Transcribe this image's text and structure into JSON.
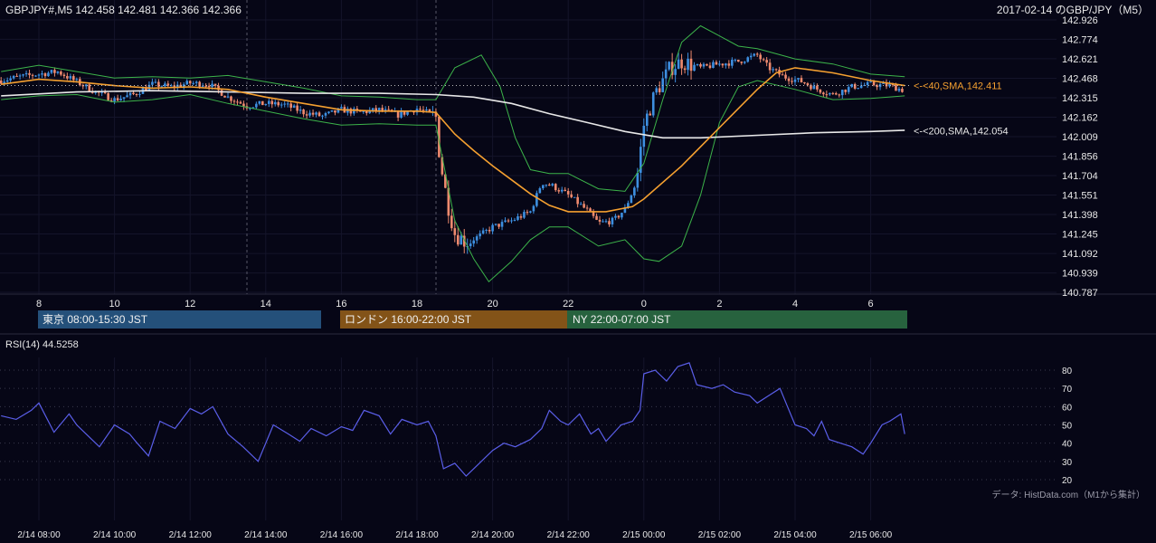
{
  "header": {
    "symbol_info": "GBPJPY#,M5 142.458 142.481 142.366 142.366",
    "chart_title": "2017-02-14 のGBP/JPY（M5）"
  },
  "price_chart": {
    "y_ticks": [
      "142.926",
      "142.774",
      "142.621",
      "142.468",
      "142.315",
      "142.162",
      "142.009",
      "141.856",
      "141.704",
      "141.551",
      "141.398",
      "141.245",
      "141.092",
      "140.939",
      "140.787"
    ],
    "ylim": [
      140.787,
      142.926
    ],
    "x_hour_ticks": [
      "8",
      "10",
      "12",
      "14",
      "16",
      "18",
      "20",
      "22",
      "0",
      "2",
      "4",
      "6"
    ],
    "current_price": 142.411,
    "sma40_label": "<-<40,SMA,142.411",
    "sma200_label": "<-<200,SMA,142.054",
    "sma40_value": 142.411,
    "sma200_value": 142.054,
    "colors": {
      "up": "#3d8fe0",
      "down": "#ef8a6e",
      "sma40": "#f5a030",
      "sma200": "#e8e8e8",
      "bollinger": "#3cb34a"
    }
  },
  "sessions": [
    {
      "label": "東京 08:00-15:30 JST",
      "color": "#24507a"
    },
    {
      "label": "ロンドン 16:00-22:00 JST",
      "color": "#835318"
    },
    {
      "label": "NY 22:00-07:00 JST",
      "color": "#27623e"
    }
  ],
  "rsi_panel": {
    "title": "RSI(14) 44.5258",
    "y_ticks": [
      "80",
      "70",
      "60",
      "50",
      "40",
      "30",
      "20"
    ],
    "ylim": [
      20,
      80
    ],
    "color": "#5a5ee8"
  },
  "footer": {
    "source": "データ: HistData.com（M1から集計）",
    "x_labels": [
      "2/14 08:00",
      "2/14 10:00",
      "2/14 12:00",
      "2/14 14:00",
      "2/14 16:00",
      "2/14 18:00",
      "2/14 20:00",
      "2/14 22:00",
      "2/15 00:00",
      "2/15 02:00",
      "2/15 04:00",
      "2/15 06:00"
    ]
  },
  "chart_data": {
    "type": "candlestick",
    "timeframe": "M5",
    "x_axis": "hour (JST), 2017-02-14 07:00 to 2017-02-15 07:00",
    "close_path": [
      [
        7.0,
        142.45
      ],
      [
        7.5,
        142.48
      ],
      [
        8.0,
        142.5
      ],
      [
        8.5,
        142.52
      ],
      [
        9.0,
        142.44
      ],
      [
        9.5,
        142.36
      ],
      [
        10.0,
        142.3
      ],
      [
        10.5,
        142.34
      ],
      [
        11.0,
        142.42
      ],
      [
        11.5,
        142.4
      ],
      [
        12.0,
        142.43
      ],
      [
        12.5,
        142.42
      ],
      [
        13.0,
        142.32
      ],
      [
        13.5,
        142.25
      ],
      [
        14.0,
        142.27
      ],
      [
        14.5,
        142.26
      ],
      [
        15.0,
        142.2
      ],
      [
        15.5,
        142.17
      ],
      [
        16.0,
        142.22
      ],
      [
        16.5,
        142.2
      ],
      [
        17.0,
        142.22
      ],
      [
        17.5,
        142.18
      ],
      [
        18.0,
        142.23
      ],
      [
        18.25,
        142.2
      ],
      [
        18.5,
        142.16
      ],
      [
        18.6,
        141.85
      ],
      [
        18.8,
        141.5
      ],
      [
        19.0,
        141.25
      ],
      [
        19.3,
        141.18
      ],
      [
        19.6,
        141.22
      ],
      [
        20.0,
        141.3
      ],
      [
        20.5,
        141.35
      ],
      [
        21.0,
        141.42
      ],
      [
        21.3,
        141.65
      ],
      [
        21.6,
        141.62
      ],
      [
        22.0,
        141.55
      ],
      [
        22.5,
        141.43
      ],
      [
        22.8,
        141.33
      ],
      [
        23.2,
        141.35
      ],
      [
        23.5,
        141.44
      ],
      [
        23.8,
        141.65
      ],
      [
        24.0,
        142.1
      ],
      [
        24.3,
        142.35
      ],
      [
        24.7,
        142.55
      ],
      [
        25.0,
        142.6
      ],
      [
        25.5,
        142.55
      ],
      [
        26.0,
        142.58
      ],
      [
        26.5,
        142.6
      ],
      [
        27.0,
        142.65
      ],
      [
        27.3,
        142.55
      ],
      [
        27.7,
        142.48
      ],
      [
        28.2,
        142.44
      ],
      [
        28.6,
        142.38
      ],
      [
        29.0,
        142.34
      ],
      [
        29.5,
        142.4
      ],
      [
        30.0,
        142.42
      ],
      [
        30.5,
        142.41
      ],
      [
        30.9,
        142.37
      ]
    ],
    "sma40_path": [
      [
        7.0,
        142.42
      ],
      [
        8.0,
        142.46
      ],
      [
        9.0,
        142.44
      ],
      [
        10.0,
        142.41
      ],
      [
        11.0,
        142.39
      ],
      [
        12.0,
        142.4
      ],
      [
        13.0,
        142.38
      ],
      [
        14.0,
        142.32
      ],
      [
        15.0,
        142.27
      ],
      [
        16.0,
        142.22
      ],
      [
        17.0,
        142.21
      ],
      [
        18.0,
        142.21
      ],
      [
        18.5,
        142.2
      ],
      [
        19.0,
        142.03
      ],
      [
        19.5,
        141.9
      ],
      [
        20.0,
        141.78
      ],
      [
        20.5,
        141.67
      ],
      [
        21.0,
        141.56
      ],
      [
        21.5,
        141.47
      ],
      [
        22.0,
        141.42
      ],
      [
        23.0,
        141.42
      ],
      [
        23.7,
        141.46
      ],
      [
        24.0,
        141.52
      ],
      [
        25.0,
        141.78
      ],
      [
        26.0,
        142.08
      ],
      [
        27.0,
        142.38
      ],
      [
        27.5,
        142.51
      ],
      [
        28.0,
        142.55
      ],
      [
        29.0,
        142.51
      ],
      [
        30.0,
        142.45
      ],
      [
        30.9,
        142.41
      ]
    ],
    "sma200_path": [
      [
        7.0,
        142.33
      ],
      [
        9.0,
        142.36
      ],
      [
        11.0,
        142.37
      ],
      [
        13.0,
        142.36
      ],
      [
        15.0,
        142.35
      ],
      [
        17.0,
        142.35
      ],
      [
        18.5,
        142.34
      ],
      [
        19.5,
        142.32
      ],
      [
        20.5,
        142.27
      ],
      [
        21.5,
        142.19
      ],
      [
        22.5,
        142.12
      ],
      [
        23.5,
        142.05
      ],
      [
        24.5,
        142.0
      ],
      [
        25.5,
        142.0
      ],
      [
        27.0,
        142.02
      ],
      [
        28.5,
        142.04
      ],
      [
        30.0,
        142.05
      ],
      [
        30.9,
        142.06
      ]
    ],
    "bb_upper_path": [
      [
        7.0,
        142.52
      ],
      [
        8.0,
        142.57
      ],
      [
        9.0,
        142.52
      ],
      [
        10.0,
        142.47
      ],
      [
        11.0,
        142.48
      ],
      [
        12.0,
        142.47
      ],
      [
        13.0,
        142.49
      ],
      [
        14.0,
        142.44
      ],
      [
        15.0,
        142.39
      ],
      [
        16.0,
        142.33
      ],
      [
        17.0,
        142.32
      ],
      [
        18.0,
        142.3
      ],
      [
        18.5,
        142.3
      ],
      [
        19.0,
        142.55
      ],
      [
        19.7,
        142.65
      ],
      [
        20.2,
        142.4
      ],
      [
        20.6,
        142.0
      ],
      [
        21.0,
        141.75
      ],
      [
        21.5,
        141.72
      ],
      [
        22.0,
        141.72
      ],
      [
        22.8,
        141.6
      ],
      [
        23.5,
        141.58
      ],
      [
        24.0,
        141.8
      ],
      [
        24.5,
        142.3
      ],
      [
        25.0,
        142.75
      ],
      [
        25.5,
        142.88
      ],
      [
        26.0,
        142.8
      ],
      [
        26.5,
        142.72
      ],
      [
        27.0,
        142.7
      ],
      [
        27.5,
        142.66
      ],
      [
        28.0,
        142.62
      ],
      [
        29.0,
        142.58
      ],
      [
        30.0,
        142.5
      ],
      [
        30.9,
        142.48
      ]
    ],
    "bb_lower_path": [
      [
        7.0,
        142.3
      ],
      [
        8.0,
        142.33
      ],
      [
        9.0,
        142.34
      ],
      [
        10.0,
        142.28
      ],
      [
        11.0,
        142.3
      ],
      [
        12.0,
        142.34
      ],
      [
        13.0,
        142.27
      ],
      [
        14.0,
        142.21
      ],
      [
        15.0,
        142.15
      ],
      [
        16.0,
        142.1
      ],
      [
        17.0,
        142.11
      ],
      [
        18.0,
        142.1
      ],
      [
        18.5,
        142.1
      ],
      [
        19.0,
        141.35
      ],
      [
        19.5,
        141.05
      ],
      [
        19.9,
        140.87
      ],
      [
        20.5,
        141.03
      ],
      [
        21.0,
        141.2
      ],
      [
        21.5,
        141.3
      ],
      [
        22.0,
        141.3
      ],
      [
        22.8,
        141.15
      ],
      [
        23.5,
        141.2
      ],
      [
        24.0,
        141.05
      ],
      [
        24.4,
        141.03
      ],
      [
        25.0,
        141.15
      ],
      [
        25.5,
        141.55
      ],
      [
        26.0,
        142.12
      ],
      [
        26.5,
        142.4
      ],
      [
        27.0,
        142.45
      ],
      [
        28.0,
        142.38
      ],
      [
        29.0,
        142.3
      ],
      [
        30.0,
        142.31
      ],
      [
        30.9,
        142.33
      ]
    ],
    "rsi_path": [
      [
        7.0,
        55
      ],
      [
        7.4,
        53
      ],
      [
        7.8,
        58
      ],
      [
        8.0,
        62
      ],
      [
        8.4,
        46
      ],
      [
        8.8,
        56
      ],
      [
        9.0,
        50
      ],
      [
        9.3,
        44
      ],
      [
        9.6,
        38
      ],
      [
        10.0,
        50
      ],
      [
        10.4,
        45
      ],
      [
        10.6,
        40
      ],
      [
        10.9,
        33
      ],
      [
        11.2,
        52
      ],
      [
        11.6,
        48
      ],
      [
        12.0,
        59
      ],
      [
        12.3,
        56
      ],
      [
        12.6,
        60
      ],
      [
        13.0,
        45
      ],
      [
        13.4,
        38
      ],
      [
        13.8,
        30
      ],
      [
        14.2,
        50
      ],
      [
        14.6,
        45
      ],
      [
        14.9,
        41
      ],
      [
        15.2,
        48
      ],
      [
        15.6,
        44
      ],
      [
        16.0,
        49
      ],
      [
        16.3,
        47
      ],
      [
        16.6,
        58
      ],
      [
        17.0,
        55
      ],
      [
        17.3,
        45
      ],
      [
        17.6,
        53
      ],
      [
        18.0,
        50
      ],
      [
        18.3,
        52
      ],
      [
        18.5,
        44
      ],
      [
        18.7,
        26
      ],
      [
        19.0,
        29
      ],
      [
        19.3,
        22
      ],
      [
        19.6,
        28
      ],
      [
        20.0,
        36
      ],
      [
        20.3,
        40
      ],
      [
        20.6,
        38
      ],
      [
        21.0,
        42
      ],
      [
        21.3,
        48
      ],
      [
        21.5,
        58
      ],
      [
        21.8,
        52
      ],
      [
        22.0,
        50
      ],
      [
        22.3,
        56
      ],
      [
        22.6,
        45
      ],
      [
        22.8,
        48
      ],
      [
        23.0,
        41
      ],
      [
        23.4,
        50
      ],
      [
        23.7,
        52
      ],
      [
        23.9,
        58
      ],
      [
        24.0,
        78
      ],
      [
        24.3,
        80
      ],
      [
        24.6,
        74
      ],
      [
        24.9,
        82
      ],
      [
        25.2,
        84
      ],
      [
        25.4,
        72
      ],
      [
        25.8,
        70
      ],
      [
        26.1,
        72
      ],
      [
        26.4,
        68
      ],
      [
        26.8,
        66
      ],
      [
        27.0,
        62
      ],
      [
        27.3,
        66
      ],
      [
        27.6,
        70
      ],
      [
        27.8,
        60
      ],
      [
        28.0,
        50
      ],
      [
        28.3,
        48
      ],
      [
        28.5,
        44
      ],
      [
        28.7,
        52
      ],
      [
        28.9,
        42
      ],
      [
        29.2,
        40
      ],
      [
        29.5,
        38
      ],
      [
        29.8,
        34
      ],
      [
        30.0,
        40
      ],
      [
        30.3,
        50
      ],
      [
        30.5,
        52
      ],
      [
        30.8,
        56
      ],
      [
        30.9,
        45
      ]
    ]
  }
}
